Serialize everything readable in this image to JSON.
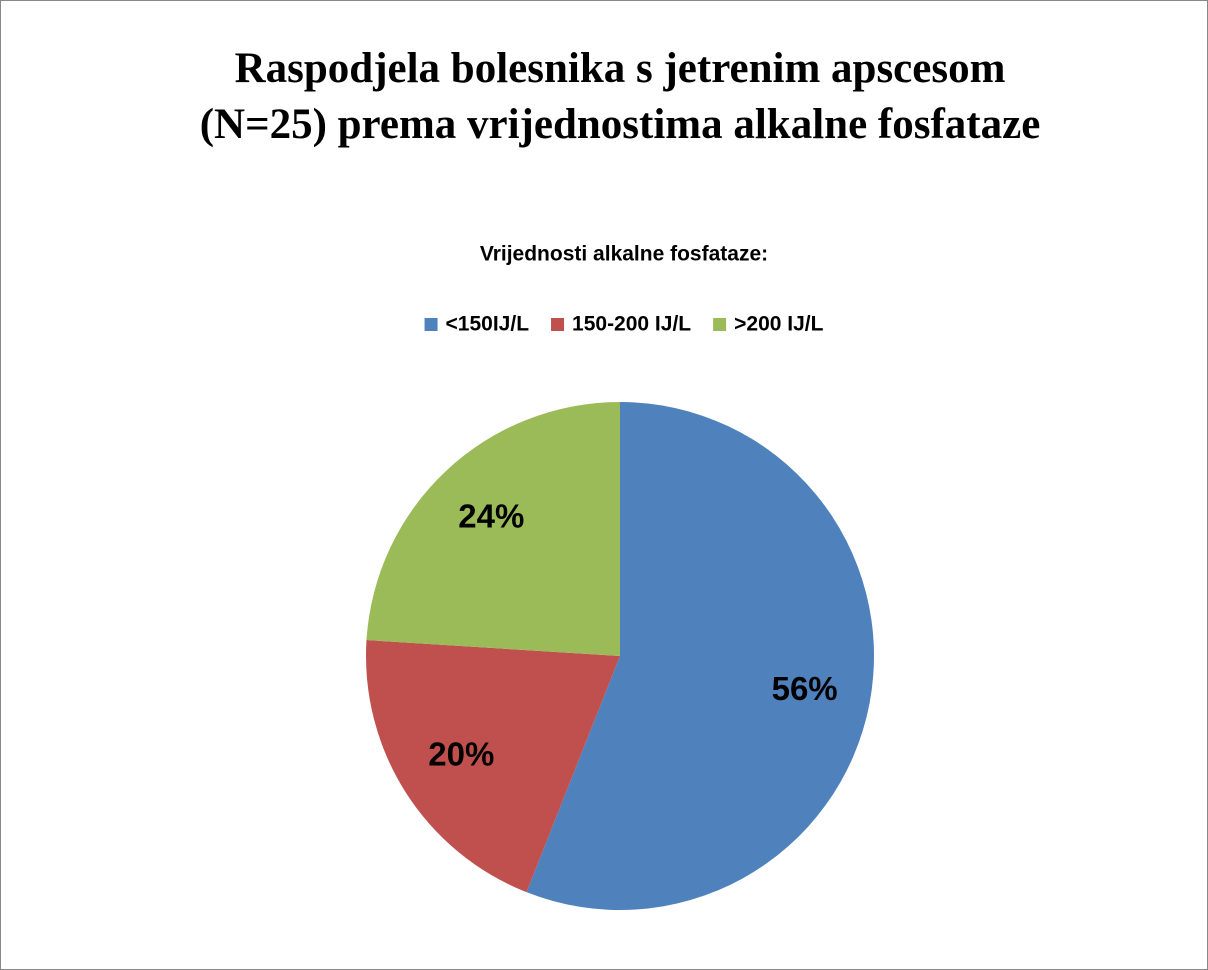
{
  "chart_data": {
    "type": "pie",
    "title": [
      "Raspodjela bolesnika s jetrenim apscesom",
      "(N=25) prema vrijednostima alkalne fosfataze"
    ],
    "legend_title": "Vrijednosti alkalne fosfataze:",
    "categories": [
      "<150IJ/L",
      "150-200 IJ/L",
      ">200 IJ/L"
    ],
    "values": [
      56,
      20,
      24
    ],
    "value_labels": [
      "56%",
      "20%",
      "24%"
    ],
    "colors": [
      "#4f81bd",
      "#c0504d",
      "#9bbb59"
    ],
    "legend": "top"
  }
}
